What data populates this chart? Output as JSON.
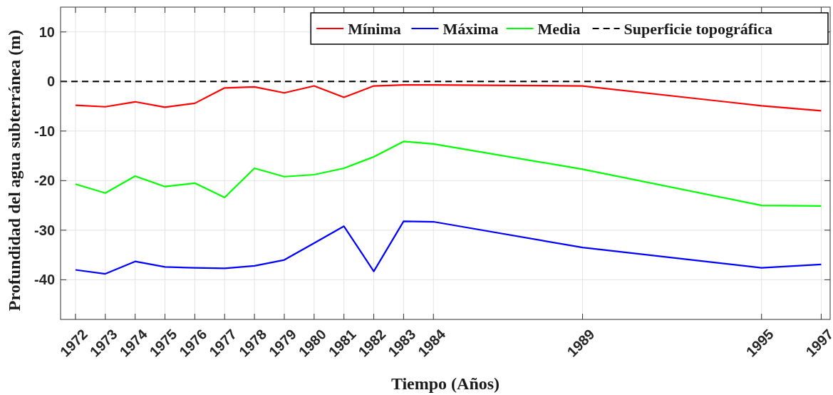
{
  "chart_data": {
    "type": "line",
    "xlabel": "Tiempo (Años)",
    "ylabel": "Profundidad del agua subterránea (m)",
    "x": [
      1972,
      1973,
      1974,
      1975,
      1976,
      1977,
      1978,
      1979,
      1980,
      1981,
      1982,
      1983,
      1984,
      1989,
      1995,
      1997
    ],
    "series": [
      {
        "name": "Mínima",
        "color": "#ff0000",
        "values": [
          -4.8,
          -5.1,
          -4.1,
          -5.2,
          -4.4,
          -1.3,
          -1.1,
          -2.3,
          -0.9,
          -3.2,
          -0.9,
          -0.7,
          -0.7,
          -0.9,
          -4.9,
          -5.9
        ]
      },
      {
        "name": "Máxima",
        "color": "#0000ff",
        "values": [
          -38.0,
          -38.8,
          -36.3,
          -37.4,
          -37.6,
          -37.7,
          -37.2,
          -36.0,
          -32.6,
          -29.2,
          -38.3,
          -28.2,
          -28.3,
          -33.5,
          -37.6,
          -36.9
        ]
      },
      {
        "name": "Media",
        "color": "#00ff00",
        "values": [
          -20.7,
          -22.5,
          -19.1,
          -21.2,
          -20.5,
          -23.4,
          -17.5,
          -19.2,
          -18.8,
          -17.5,
          -15.2,
          -12.1,
          -12.6,
          -17.7,
          -25.0,
          -25.1
        ]
      }
    ],
    "ref_lines": [
      {
        "axis": "y",
        "value": 0,
        "label": "Superficie topográfica",
        "color": "#000000",
        "line_style": "dashed"
      }
    ],
    "xlim": [
      1971.5,
      1997.3
    ],
    "xticks": [
      1972,
      1973,
      1974,
      1975,
      1976,
      1977,
      1978,
      1979,
      1980,
      1981,
      1982,
      1983,
      1984,
      1989,
      1995,
      1997
    ],
    "ylim": [
      -48,
      15
    ],
    "yticks": [
      -40,
      -30,
      -20,
      -10,
      0,
      10
    ],
    "grid": true,
    "legend": "top right",
    "marker": "none",
    "line_style": "solid"
  }
}
